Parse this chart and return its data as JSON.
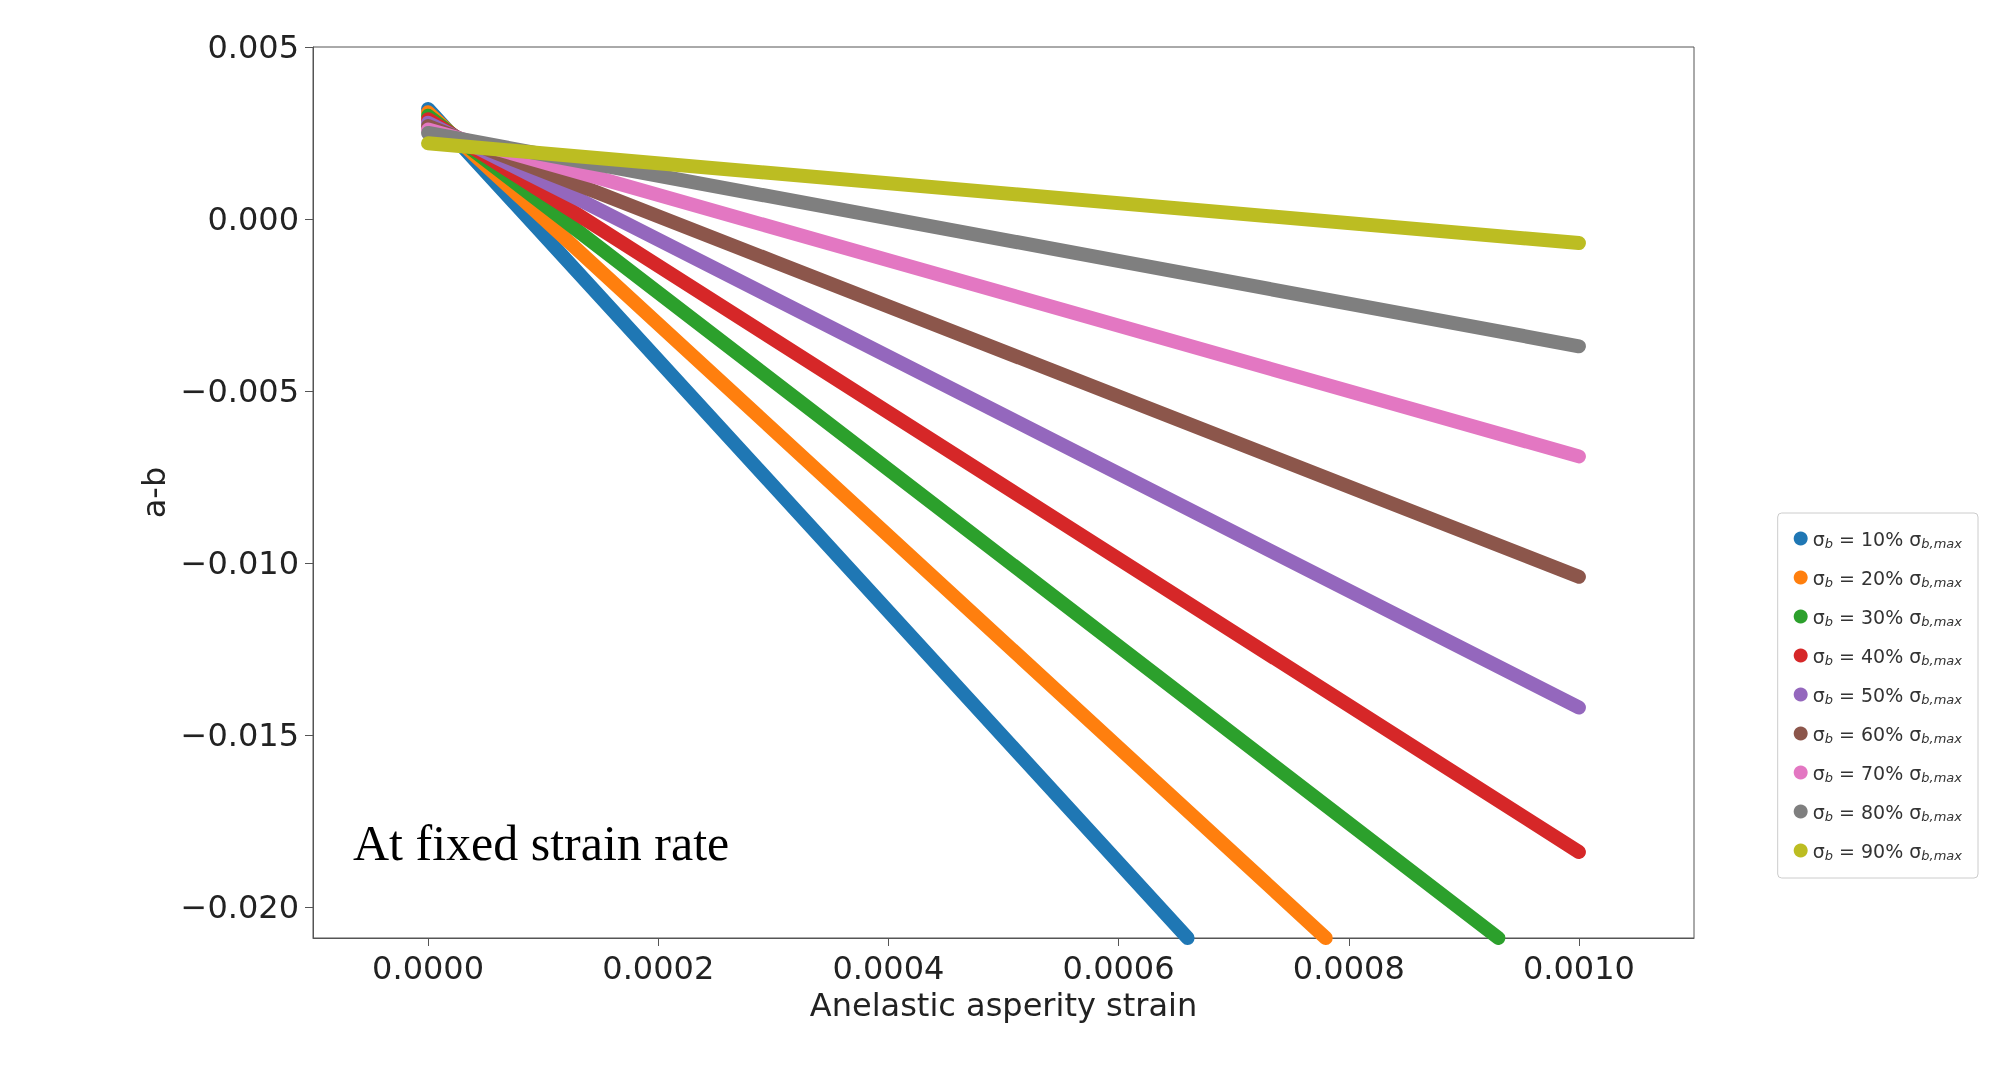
{
  "chart_data": {
    "type": "line",
    "xlabel": "Anelastic asperity strain",
    "ylabel": "a-b",
    "annotations": [
      "At fixed strain rate"
    ],
    "xlim": [
      -0.0001,
      0.0011
    ],
    "ylim": [
      -0.0209,
      0.005
    ],
    "xticks": [
      {
        "value": 0,
        "label": "0.0000"
      },
      {
        "value": 0.0002,
        "label": "0.0002"
      },
      {
        "value": 0.0004,
        "label": "0.0004"
      },
      {
        "value": 0.0006,
        "label": "0.0006"
      },
      {
        "value": 0.0008,
        "label": "0.0008"
      },
      {
        "value": 0.001,
        "label": "0.0010"
      }
    ],
    "yticks": [
      {
        "value": 0.005,
        "label": "0.005"
      },
      {
        "value": 0,
        "label": "0.000"
      },
      {
        "value": -0.005,
        "label": "−0.005"
      },
      {
        "value": -0.01,
        "label": "−0.010"
      },
      {
        "value": -0.015,
        "label": "−0.015"
      },
      {
        "value": -0.02,
        "label": "−0.020"
      }
    ],
    "grid": false,
    "legend": "right",
    "marker": "none",
    "line_style": "solid",
    "series": [
      {
        "name": "σ$_{b}$ = 10% σ$_{b,max}$",
        "color": "#1f77b4",
        "x": [
          0,
          0.00066
        ],
        "values": [
          0.0032,
          -0.0209
        ]
      },
      {
        "name": "σ$_{b}$ = 20% σ$_{b,max}$",
        "color": "#ff7f0e",
        "x": [
          0,
          0.00078
        ],
        "values": [
          0.0031,
          -0.0209
        ]
      },
      {
        "name": "σ$_{b}$ = 30% σ$_{b,max}$",
        "color": "#2ca02c",
        "x": [
          0,
          0.00093
        ],
        "values": [
          0.003,
          -0.0209
        ]
      },
      {
        "name": "σ$_{b}$ = 40% σ$_{b,max}$",
        "color": "#d62728",
        "x": [
          0,
          0.001
        ],
        "values": [
          0.0029,
          -0.0184
        ]
      },
      {
        "name": "σ$_{b}$ = 50% σ$_{b,max}$",
        "color": "#9467bd",
        "x": [
          0,
          0.001
        ],
        "values": [
          0.0028,
          -0.0142
        ]
      },
      {
        "name": "σ$_{b}$ = 60% σ$_{b,max}$",
        "color": "#8c564b",
        "x": [
          0,
          0.001
        ],
        "values": [
          0.0027,
          -0.0104
        ]
      },
      {
        "name": "σ$_{b}$ = 70% σ$_{b,max}$",
        "color": "#e377c2",
        "x": [
          0,
          0.001
        ],
        "values": [
          0.0026,
          -0.0069
        ]
      },
      {
        "name": "σ$_{b}$ = 80% σ$_{b,max}$",
        "color": "#7f7f7f",
        "x": [
          0,
          0.001
        ],
        "values": [
          0.0025,
          -0.0037
        ]
      },
      {
        "name": "σ$_{b}$ = 90% σ$_{b,max}$",
        "color": "#bcbd22",
        "x": [
          0,
          0.001
        ],
        "values": [
          0.0022,
          -0.0007
        ]
      }
    ]
  }
}
